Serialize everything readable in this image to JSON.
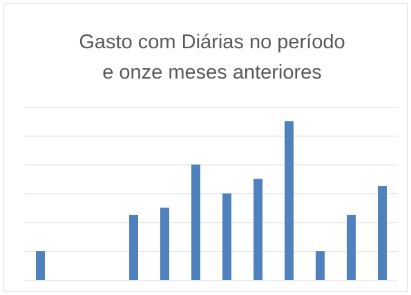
{
  "chart_data": {
    "type": "bar",
    "title": [
      "Gasto com Diárias no período",
      "e onze meses anteriores"
    ],
    "categories": [
      null,
      null,
      null,
      null,
      null,
      null,
      null,
      null,
      null,
      null,
      null,
      null
    ],
    "values": [
      1,
      0,
      0,
      2.25,
      2.5,
      4,
      3,
      3.5,
      5.5,
      1,
      2.25,
      3.25
    ],
    "color": "#4f81bd",
    "ylim": [
      0,
      6
    ],
    "yticks": [
      0,
      1,
      2,
      3,
      4,
      5,
      6
    ],
    "grid": true
  }
}
